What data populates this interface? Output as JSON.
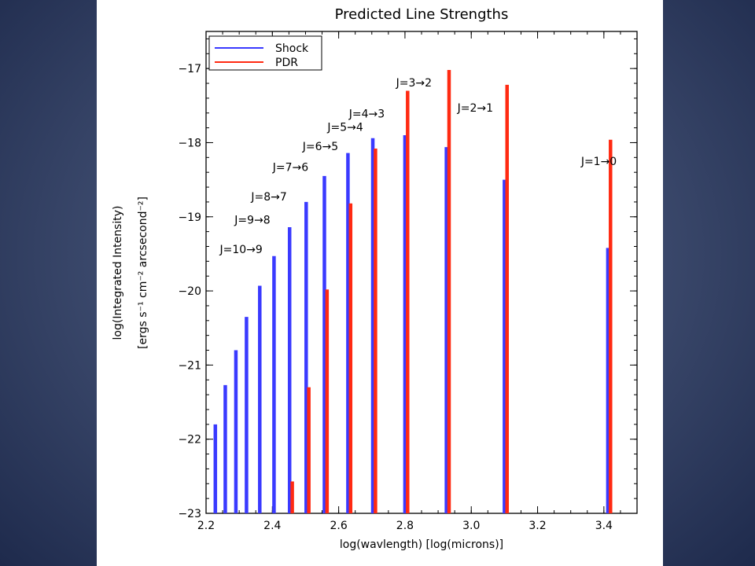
{
  "chart_data": {
    "type": "bar",
    "title": "Predicted Line Strengths",
    "xlabel": "log(wavlength)  [log(microns)]",
    "ylabel_line1": "log(Integrated Intensity)",
    "ylabel_line2": "[ergs s⁻¹ cm⁻² arcsecond⁻²]",
    "xlim": [
      2.2,
      3.5
    ],
    "ylim": [
      -23,
      -16.5
    ],
    "x_ticks": [
      {
        "value": 2.2,
        "label": "2.2"
      },
      {
        "value": 2.4,
        "label": "2.4"
      },
      {
        "value": 2.6,
        "label": "2.6"
      },
      {
        "value": 2.8,
        "label": "2.8"
      },
      {
        "value": 3.0,
        "label": "3.0"
      },
      {
        "value": 3.2,
        "label": "3.2"
      },
      {
        "value": 3.4,
        "label": "3.4"
      }
    ],
    "y_ticks": [
      {
        "value": -23,
        "label": "−23"
      },
      {
        "value": -22,
        "label": "−22"
      },
      {
        "value": -21,
        "label": "−21"
      },
      {
        "value": -20,
        "label": "−20"
      },
      {
        "value": -19,
        "label": "−19"
      },
      {
        "value": -18,
        "label": "−18"
      },
      {
        "value": -17,
        "label": "−17"
      }
    ],
    "legend_position": "top-left",
    "series": [
      {
        "name": "Shock",
        "color": "#3a3aff",
        "points": [
          {
            "x": 2.228,
            "y": -21.8
          },
          {
            "x": 2.258,
            "y": -21.27
          },
          {
            "x": 2.29,
            "y": -20.8
          },
          {
            "x": 2.322,
            "y": -20.35
          },
          {
            "x": 2.362,
            "y": -19.93
          },
          {
            "x": 2.405,
            "y": -19.53
          },
          {
            "x": 2.452,
            "y": -19.14
          },
          {
            "x": 2.502,
            "y": -18.8
          },
          {
            "x": 2.557,
            "y": -18.45
          },
          {
            "x": 2.628,
            "y": -18.14
          },
          {
            "x": 2.703,
            "y": -17.94
          },
          {
            "x": 2.8,
            "y": -17.9
          },
          {
            "x": 2.925,
            "y": -18.06
          },
          {
            "x": 3.1,
            "y": -18.5
          },
          {
            "x": 3.412,
            "y": -19.42
          }
        ]
      },
      {
        "name": "PDR",
        "color": "#ff2a12",
        "points": [
          {
            "x": 2.46,
            "y": -22.57
          },
          {
            "x": 2.51,
            "y": -21.3
          },
          {
            "x": 2.565,
            "y": -19.98
          },
          {
            "x": 2.636,
            "y": -18.82
          },
          {
            "x": 2.711,
            "y": -18.08
          },
          {
            "x": 2.808,
            "y": -17.3
          },
          {
            "x": 2.933,
            "y": -17.02
          },
          {
            "x": 3.108,
            "y": -17.22
          },
          {
            "x": 3.42,
            "y": -17.96
          }
        ]
      }
    ],
    "annotations": [
      {
        "text": "J=10→9",
        "x": 2.306,
        "y": -19.49
      },
      {
        "text": "J=9→8",
        "x": 2.34,
        "y": -19.09
      },
      {
        "text": "J=8→7",
        "x": 2.39,
        "y": -18.78
      },
      {
        "text": "J=7→6",
        "x": 2.455,
        "y": -18.38
      },
      {
        "text": "J=6→5",
        "x": 2.545,
        "y": -18.1
      },
      {
        "text": "J=5→4",
        "x": 2.62,
        "y": -17.84
      },
      {
        "text": "J=4→3",
        "x": 2.685,
        "y": -17.66
      },
      {
        "text": "J=3→2",
        "x": 2.827,
        "y": -17.24
      },
      {
        "text": "J=2→1",
        "x": 3.012,
        "y": -17.58
      },
      {
        "text": "J=1→0",
        "x": 3.385,
        "y": -18.3
      }
    ]
  }
}
